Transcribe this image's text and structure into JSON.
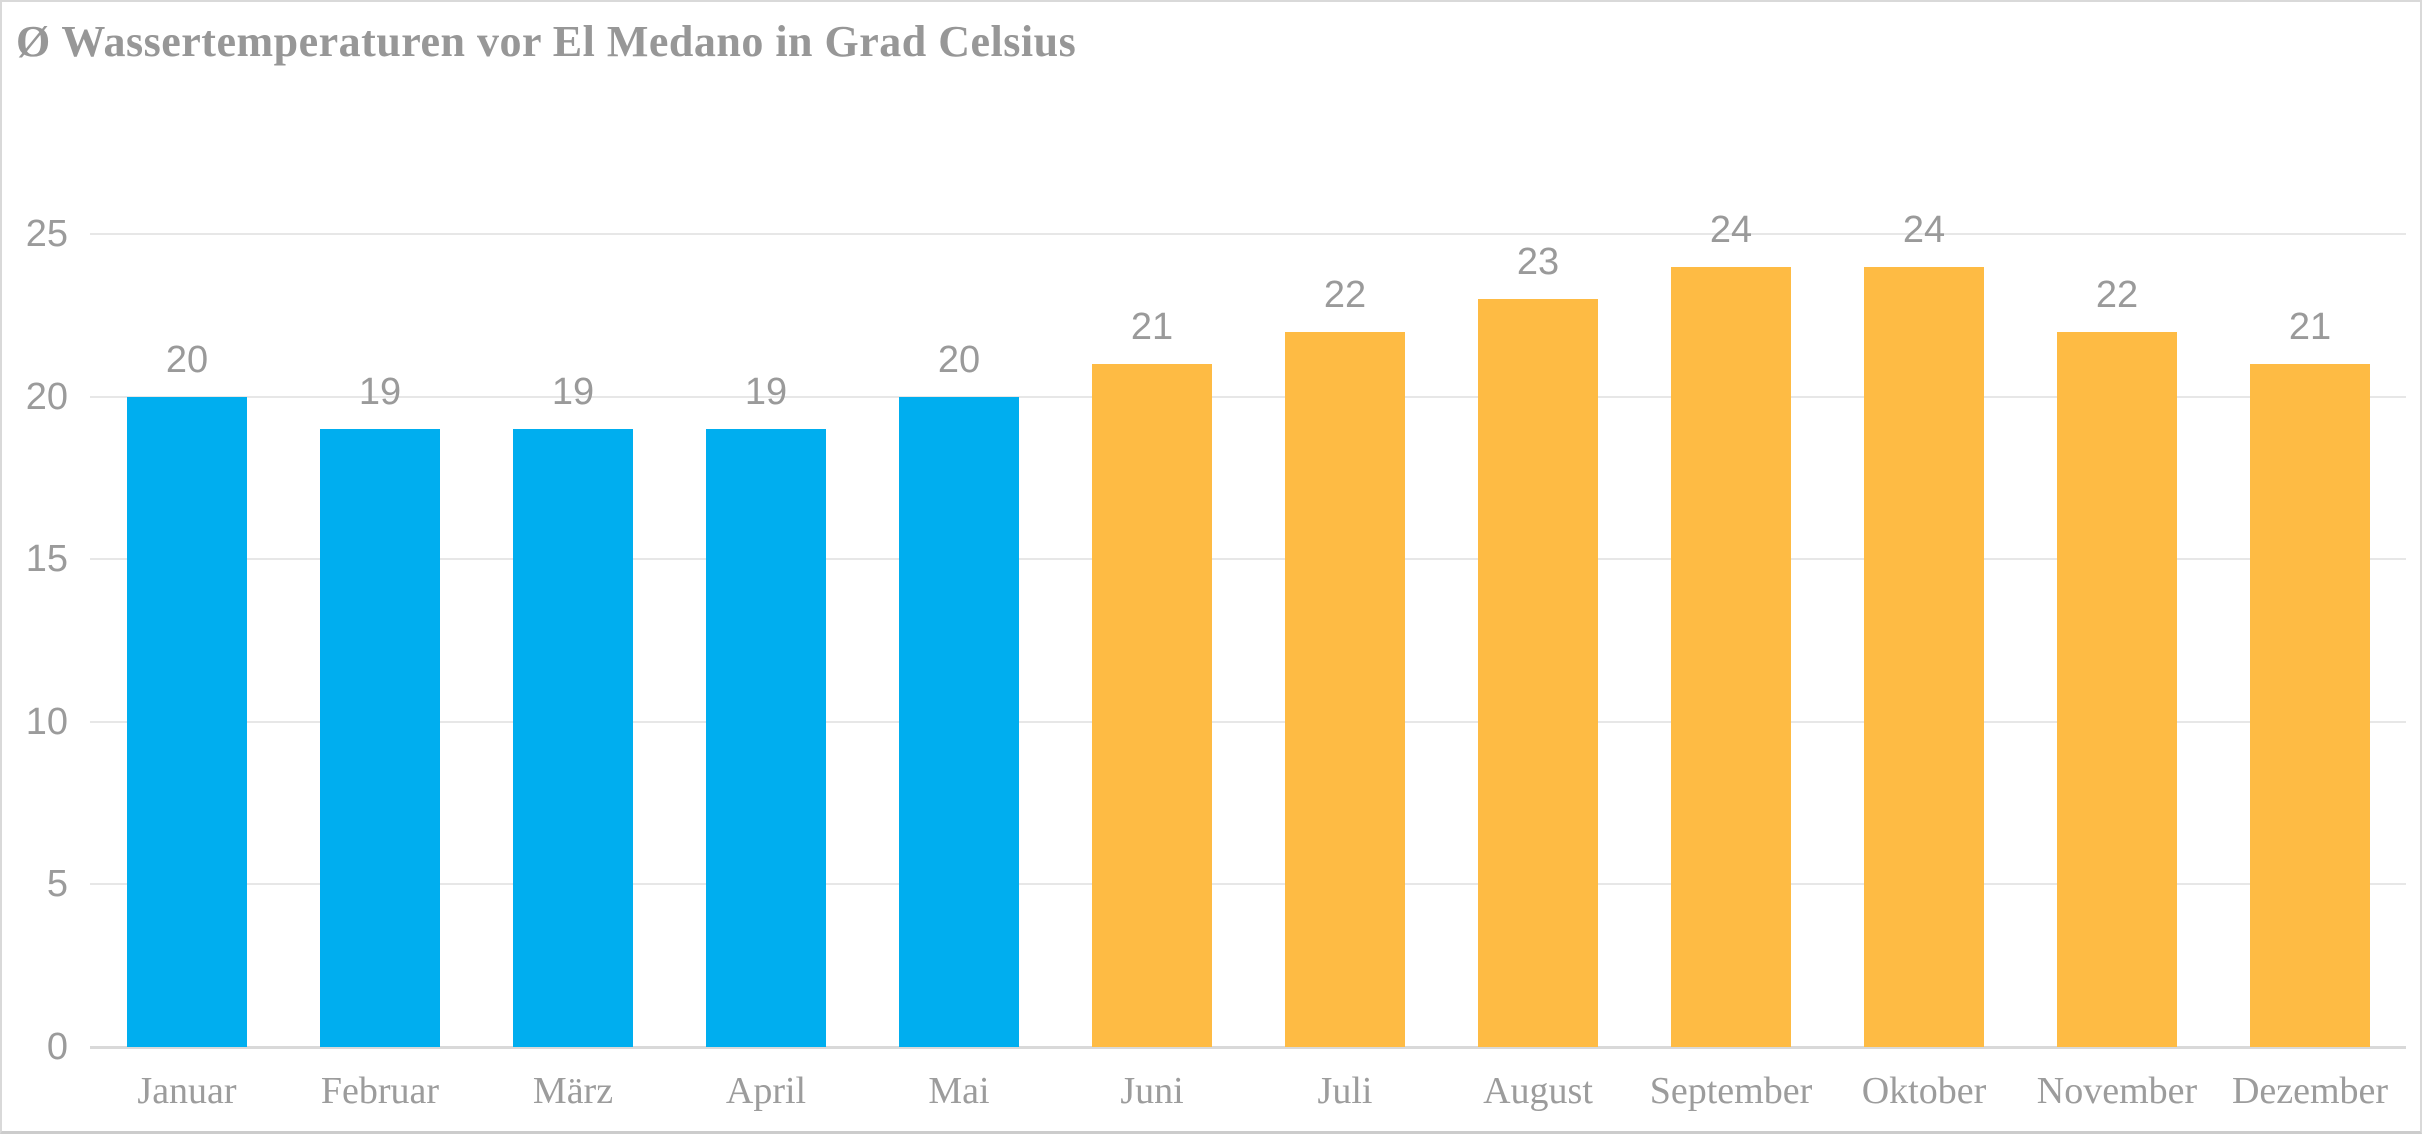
{
  "chart_data": {
    "type": "bar",
    "title": "Ø Wassertemperaturen vor El Medano in Grad Celsius",
    "categories": [
      "Januar",
      "Februar",
      "März",
      "April",
      "Mai",
      "Juni",
      "Juli",
      "August",
      "September",
      "Oktober",
      "November",
      "Dezember"
    ],
    "values": [
      20,
      19,
      19,
      19,
      20,
      21,
      22,
      23,
      24,
      24,
      22,
      21
    ],
    "bar_colors": [
      "#00AEEF",
      "#00AEEF",
      "#00AEEF",
      "#00AEEF",
      "#00AEEF",
      "#FEBB44",
      "#FEBB44",
      "#FEBB44",
      "#FEBB44",
      "#FEBB44",
      "#FEBB44",
      "#FEBB44"
    ],
    "xlabel": "",
    "ylabel": "",
    "ylim": [
      0,
      25
    ],
    "yticks": [
      0,
      5,
      10,
      15,
      20,
      25
    ],
    "grid": "horizontal",
    "legend": "none",
    "data_labels_shown": true,
    "colors": {
      "blue_bars": "#00AEEF",
      "orange_bars": "#FEBB44",
      "title_text": "#979797",
      "axis_tick_text": "#9B9B9B",
      "data_label_text": "#9A9A9A",
      "month_label_text": "#9C9C9C",
      "gridline": "#E7E7E7",
      "axis_line": "#D9D9D9",
      "card_border": "#D9D9D9",
      "background": "#FFFFFF"
    }
  }
}
